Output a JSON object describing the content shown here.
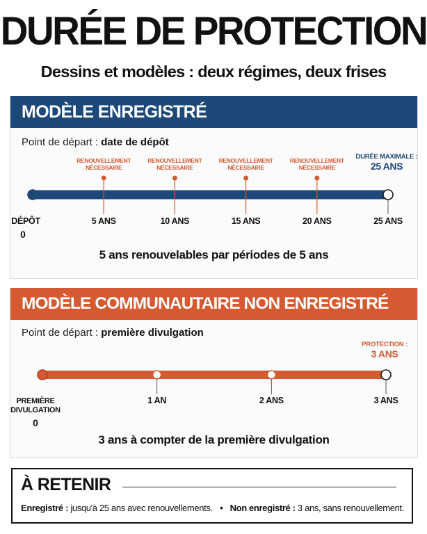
{
  "title": "DURÉE DE PROTECTION",
  "subtitle": "Dessins et modèles : deux régimes, deux frises",
  "registered": {
    "heading": "MODÈLE ENREGISTRÉ",
    "start_prefix": "Point de départ :",
    "start_value": "date de dépôt",
    "summary": "5 ans renouvelables par périodes de 5 ans",
    "color": "#1d4878",
    "marker_color": "#d55a32",
    "points": [
      {
        "years": 0,
        "label": "DÉPÔT",
        "sublabel": "0",
        "annotation": []
      },
      {
        "years": 5,
        "label": "5 ANS",
        "sublabel": "",
        "annotation": [
          "RENOUVELLEMENT",
          "NÉCESSAIRE"
        ]
      },
      {
        "years": 10,
        "label": "10 ANS",
        "sublabel": "",
        "annotation": [
          "RENOUVELLEMENT",
          "NÉCESSAIRE"
        ]
      },
      {
        "years": 15,
        "label": "15 ANS",
        "sublabel": "",
        "annotation": [
          "RENOUVELLEMENT",
          "NÉCESSAIRE"
        ]
      },
      {
        "years": 20,
        "label": "20 ANS",
        "sublabel": "",
        "annotation": [
          "RENOUVELLEMENT",
          "NÉCESSAIRE"
        ]
      },
      {
        "years": 25,
        "label": "25 ANS",
        "sublabel": "",
        "annotation": [],
        "end_label": "DURÉE MAXIMALE :",
        "end_value": "25 ANS"
      }
    ]
  },
  "unregistered": {
    "heading": "MODÈLE COMMUNAUTAIRE NON ENREGISTRÉ",
    "start_prefix": "Point de départ :",
    "start_value": "première divulgation",
    "summary": "3 ans à compter de la première divulgation",
    "color": "#d55a32",
    "points": [
      {
        "years": 0,
        "label": "PREMIÈRE",
        "label2": "DIVULGATION",
        "sublabel": "0"
      },
      {
        "years": 1,
        "label": "1 AN",
        "sublabel": ""
      },
      {
        "years": 2,
        "label": "2 ANS",
        "sublabel": ""
      },
      {
        "years": 3,
        "label": "3 ANS",
        "sublabel": "",
        "end_label": "PROTECTION :",
        "end_value": "3 ANS"
      }
    ]
  },
  "note": {
    "title": "À RETENIR",
    "registered_label": "Enregistré :",
    "registered_text": "jusqu'à 25 ans avec renouvellements.",
    "separator": "•",
    "unregistered_label": "Non enregistré :",
    "unregistered_text": "3 ans, sans renouvellement."
  }
}
